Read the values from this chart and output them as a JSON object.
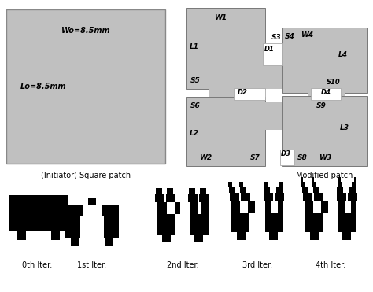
{
  "background_color": "#ffffff",
  "patch_gray": "#c0c0c0",
  "text_color": "#000000",
  "title1": "(Initiator) Square patch",
  "title2": "Modified patch",
  "label_wo": "Wo=8.5mm",
  "label_lo": "Lo=8.5mm",
  "iter_labels": [
    "0th Iter.",
    "1st Iter.",
    "2nd Iter.",
    "3rd Iter.",
    "4th Iter."
  ],
  "fig_width": 4.74,
  "fig_height": 3.71,
  "dpi": 100
}
